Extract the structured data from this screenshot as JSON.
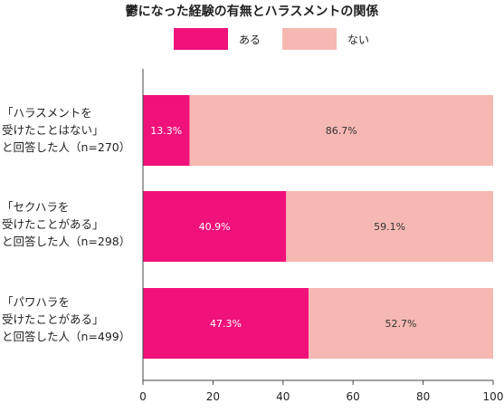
{
  "chart_data": {
    "type": "bar",
    "orientation": "horizontal",
    "stacked": true,
    "title": "鬱になった経験の有無とハラスメントの関係",
    "categories": [
      "「ハラスメントを\n受けたことはない」\nと回答した人（n=270）",
      "「セクハラを\n受けたことがある」\nと回答した人（n=298）",
      "「パワハラを\n受けたことがある」\nと回答した人（n=499）"
    ],
    "series": [
      {
        "name": "ある",
        "color": "#f0117a",
        "values": [
          13.3,
          40.9,
          47.3
        ],
        "labels": [
          "13.3%",
          "40.9%",
          "47.3%"
        ]
      },
      {
        "name": "ない",
        "color": "#f6b8b3",
        "values": [
          86.7,
          59.1,
          52.7
        ],
        "labels": [
          "86.7%",
          "59.1%",
          "52.7%"
        ]
      }
    ],
    "xlim": [
      0,
      100
    ],
    "xticks": [
      0,
      20,
      40,
      60,
      80,
      100
    ],
    "xtick_labels": [
      "0",
      "20",
      "40",
      "60",
      "80",
      "100"
    ],
    "legend_position": "top",
    "grid": false
  }
}
